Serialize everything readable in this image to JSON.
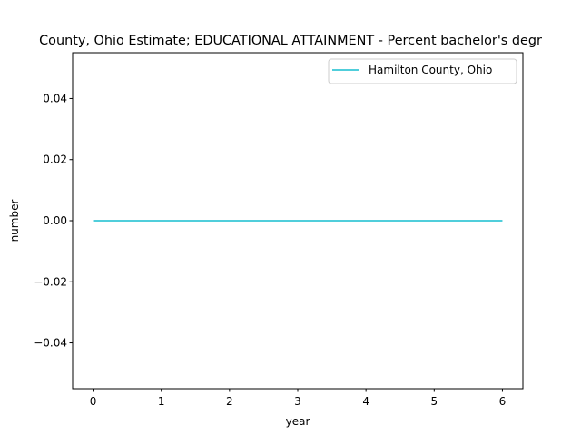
{
  "chart_data": {
    "type": "line",
    "title": "County, Ohio Estimate; EDUCATIONAL ATTAINMENT - Percent bachelor's degr",
    "xlabel": "year",
    "ylabel": "number",
    "xlim": [
      -0.3,
      6.3
    ],
    "ylim": [
      -0.055,
      0.055
    ],
    "xticks": [
      0,
      1,
      2,
      3,
      4,
      5,
      6
    ],
    "xtick_labels": [
      "0",
      "1",
      "2",
      "3",
      "4",
      "5",
      "6"
    ],
    "yticks": [
      -0.04,
      -0.02,
      0.0,
      0.02,
      0.04
    ],
    "ytick_labels": [
      "−0.04",
      "−0.02",
      "0.00",
      "0.02",
      "0.04"
    ],
    "grid": false,
    "legend_position": "upper right",
    "series": [
      {
        "name": "Hamilton County, Ohio",
        "color": "#17becf",
        "x": [
          0,
          1,
          2,
          3,
          4,
          5,
          6
        ],
        "y": [
          0,
          0,
          0,
          0,
          0,
          0,
          0
        ]
      }
    ]
  }
}
